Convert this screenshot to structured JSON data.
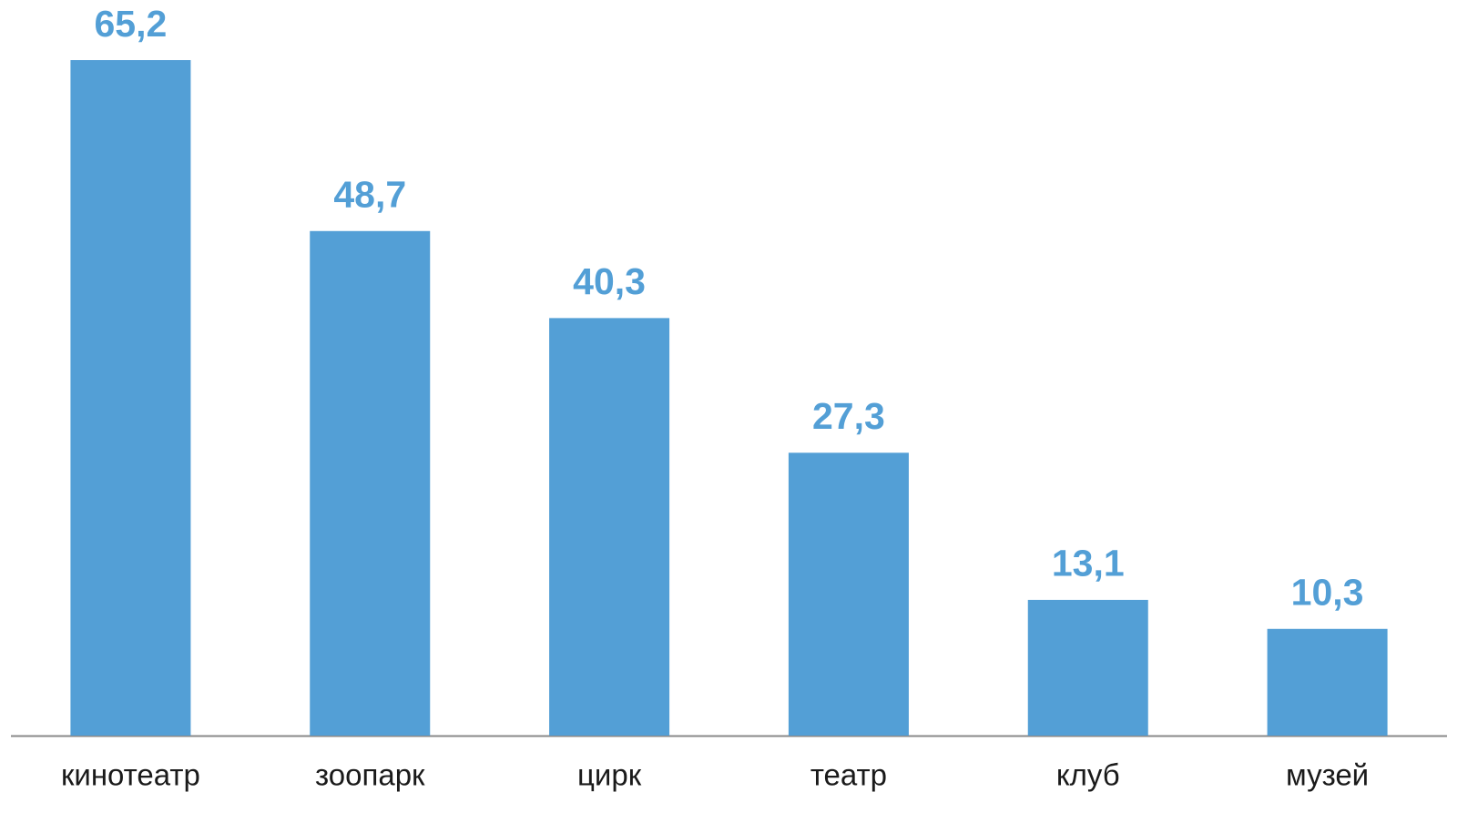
{
  "chart_data": {
    "type": "bar",
    "categories": [
      "кинотеатр",
      "зоопарк",
      "цирк",
      "театр",
      "клуб",
      "музей"
    ],
    "values": [
      65.2,
      48.7,
      40.3,
      27.3,
      13.1,
      10.3
    ],
    "value_labels": [
      "65,2",
      "48,7",
      "40,3",
      "27,3",
      "13,1",
      "10,3"
    ],
    "color": "#539fd6",
    "ylim": [
      0,
      71
    ]
  }
}
